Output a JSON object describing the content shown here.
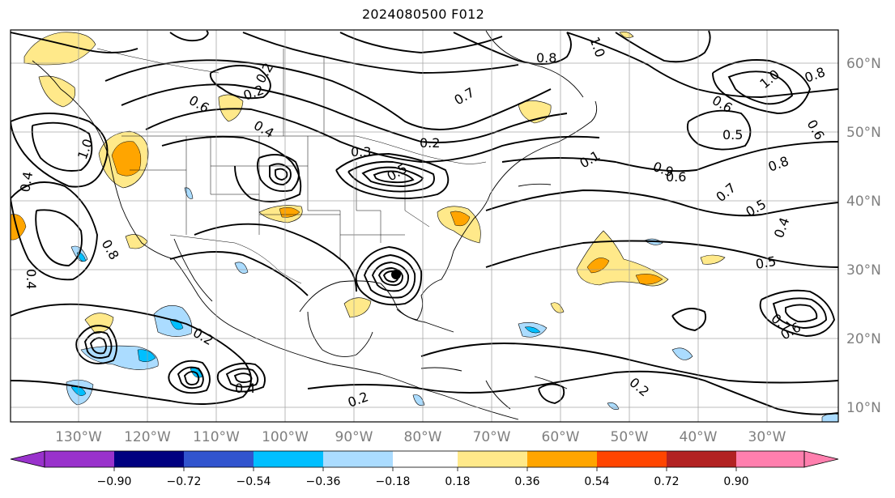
{
  "title": "2024080500 F012",
  "map": {
    "lon_labels": [
      "130°W",
      "120°W",
      "110°W",
      "100°W",
      "90°W",
      "80°W",
      "70°W",
      "60°W",
      "50°W",
      "40°W",
      "30°W"
    ],
    "lat_labels": [
      "60°N",
      "50°N",
      "40°N",
      "30°N",
      "20°N",
      "10°N"
    ],
    "contour_labels": [
      "0.2",
      "0.6",
      "0.4",
      "0.2",
      "1.0",
      "0.4",
      "0.8",
      "0.4",
      "0.3",
      "0.5",
      "0.2",
      "0.7",
      "0.8",
      "1.0",
      "0.6",
      "0.5",
      "1.0",
      "0.8",
      "0.6",
      "0.9",
      "0.6",
      "0.8",
      "0.7",
      "0.5",
      "0.4",
      "0.5",
      "0.7",
      "0.6",
      "0.2",
      "0.2",
      "0.4",
      "0.2",
      "0.1"
    ],
    "fill_colors": {
      "warm_light": "#ffe98a",
      "warm_mid": "#ffa500",
      "cool_light": "#abdcff",
      "cool_mid": "#00bfff"
    }
  },
  "colorbar": {
    "ticks": [
      "−0.90",
      "−0.72",
      "−0.54",
      "−0.36",
      "−0.18",
      "0.18",
      "0.36",
      "0.54",
      "0.72",
      "0.90"
    ],
    "colors": [
      "#9932cc",
      "#9b32cc",
      "#000080",
      "#3154ce",
      "#00bfff",
      "#abdcff",
      "#ffffff",
      "#ffe98a",
      "#ffa500",
      "#ff4500",
      "#b22222",
      "#ff7fae"
    ]
  }
}
